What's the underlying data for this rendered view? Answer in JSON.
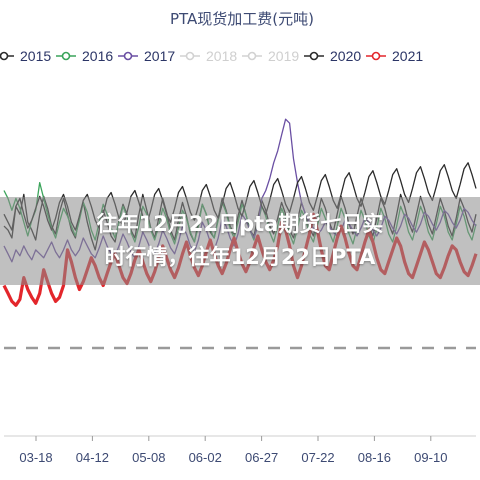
{
  "chart_data": {
    "type": "line",
    "title": "PTA现货加工费(元吨)",
    "xlabel": "",
    "ylabel": "",
    "legend_position": "top",
    "grid": false,
    "x_tick_labels": [
      "03-18",
      "04-12",
      "05-08",
      "06-02",
      "06-27",
      "07-22",
      "08-16",
      "09-10"
    ],
    "ylim": [
      0,
      1000
    ],
    "n_points": 120,
    "series": [
      {
        "name": "2015",
        "color": "#2b2b2b",
        "visible": true,
        "values": [
          530,
          520,
          500,
          580,
          560,
          610,
          540,
          520,
          495,
          560,
          605,
          575,
          530,
          510,
          565,
          600,
          560,
          520,
          500,
          555,
          590,
          540,
          500,
          470,
          520,
          570,
          540,
          505,
          490,
          545,
          585,
          560,
          520,
          500,
          560,
          610,
          570,
          525,
          500,
          550,
          600,
          565,
          520,
          495,
          545,
          590,
          555,
          510,
          490,
          540,
          585,
          560,
          515,
          500,
          550,
          600,
          570,
          530,
          510,
          555,
          595,
          560,
          520,
          505,
          550,
          595,
          570,
          530,
          510,
          550,
          590,
          560,
          520,
          500,
          545,
          590,
          560,
          525,
          505,
          550,
          600,
          575,
          540,
          515,
          560,
          605,
          575,
          535,
          510,
          555,
          600,
          570,
          530,
          505,
          550,
          600,
          575,
          535,
          510,
          560,
          610,
          580,
          540,
          515,
          560,
          605,
          575,
          535,
          510,
          555,
          600,
          570,
          530,
          505,
          550,
          600,
          575,
          540,
          515,
          560
        ]
      },
      {
        "name": "2016",
        "color": "#3aa45a",
        "visible": true,
        "values": [
          620,
          600,
          570,
          600,
          575,
          540,
          505,
          545,
          570,
          640,
          600,
          560,
          525,
          500,
          540,
          575,
          555,
          530,
          505,
          545,
          590,
          565,
          520,
          495,
          540,
          585,
          560,
          525,
          500,
          540,
          580,
          555,
          515,
          490,
          530,
          580,
          560,
          520,
          495,
          530,
          575,
          550,
          510,
          485,
          525,
          570,
          550,
          515,
          490,
          530,
          585,
          560,
          520,
          500,
          545,
          590,
          565,
          525,
          500,
          540,
          585,
          560,
          520,
          495,
          535,
          580,
          555,
          515,
          490,
          530,
          575,
          550,
          510,
          485,
          525,
          570,
          550,
          510,
          490,
          530,
          575,
          550,
          515,
          490,
          530,
          575,
          550,
          510,
          485,
          525,
          570,
          545,
          505,
          485,
          525,
          575,
          550,
          510,
          490,
          530,
          580,
          555,
          515,
          495,
          535,
          580,
          555,
          515,
          495,
          535,
          580,
          555,
          515,
          495,
          535,
          580,
          555,
          515,
          495,
          535
        ]
      },
      {
        "name": "2017",
        "color": "#6a4fa3",
        "visible": true,
        "values": [
          480,
          460,
          440,
          470,
          455,
          480,
          460,
          445,
          470,
          460,
          450,
          470,
          490,
          465,
          450,
          470,
          495,
          470,
          455,
          470,
          500,
          480,
          460,
          450,
          475,
          505,
          480,
          460,
          455,
          480,
          510,
          490,
          465,
          450,
          480,
          515,
          495,
          470,
          460,
          485,
          520,
          500,
          475,
          460,
          490,
          530,
          510,
          480,
          465,
          495,
          540,
          520,
          490,
          470,
          500,
          550,
          530,
          500,
          480,
          510,
          560,
          545,
          520,
          500,
          530,
          600,
          620,
          650,
          690,
          720,
          760,
          800,
          790,
          700,
          640,
          590,
          560,
          540,
          525,
          510,
          520,
          540,
          530,
          515,
          505,
          520,
          545,
          535,
          520,
          505,
          525,
          550,
          540,
          520,
          505,
          525,
          555,
          545,
          525,
          510,
          530,
          560,
          550,
          530,
          515,
          535,
          565,
          555,
          535,
          520,
          540,
          570,
          560,
          540,
          525,
          545,
          575,
          565,
          545,
          530
        ]
      },
      {
        "name": "2018",
        "color": "#d2d2d2",
        "visible": false,
        "values": []
      },
      {
        "name": "2019",
        "color": "#d2d2d2",
        "visible": false,
        "values": []
      },
      {
        "name": "2020",
        "color": "#2b2b2b",
        "visible": true,
        "values": [
          560,
          540,
          520,
          580,
          600,
          560,
          525,
          545,
          575,
          605,
          580,
          545,
          520,
          550,
          590,
          610,
          580,
          540,
          520,
          555,
          595,
          610,
          580,
          545,
          525,
          560,
          600,
          615,
          585,
          550,
          530,
          565,
          605,
          620,
          590,
          555,
          535,
          570,
          610,
          625,
          595,
          560,
          540,
          575,
          615,
          630,
          600,
          565,
          545,
          580,
          620,
          635,
          605,
          570,
          550,
          585,
          625,
          640,
          610,
          575,
          555,
          590,
          630,
          645,
          615,
          580,
          560,
          595,
          635,
          650,
          620,
          585,
          565,
          600,
          640,
          655,
          625,
          590,
          570,
          605,
          645,
          660,
          630,
          595,
          575,
          610,
          650,
          665,
          635,
          600,
          580,
          615,
          655,
          670,
          640,
          605,
          585,
          620,
          660,
          675,
          645,
          610,
          590,
          625,
          665,
          680,
          650,
          615,
          595,
          630,
          670,
          685,
          655,
          620,
          600,
          635,
          675,
          690,
          660,
          625
        ]
      },
      {
        "name": "2021",
        "color": "#e3262b",
        "visible": true,
        "values": [
          380,
          360,
          340,
          330,
          345,
          400,
          370,
          350,
          335,
          360,
          420,
          390,
          360,
          340,
          350,
          380,
          470,
          440,
          400,
          370,
          390,
          420,
          450,
          430,
          400,
          380,
          410,
          440,
          460,
          430,
          400,
          385,
          410,
          445,
          470,
          440,
          410,
          390,
          415,
          450,
          480,
          450,
          420,
          400,
          425,
          460,
          490,
          455,
          425,
          405,
          430,
          465,
          495,
          460,
          430,
          410,
          435,
          470,
          500,
          465,
          435,
          415,
          440,
          475,
          505,
          470,
          440,
          420,
          445,
          480,
          540,
          520,
          480,
          430,
          400,
          430,
          470,
          510,
          560,
          520,
          470,
          430,
          420,
          460,
          500,
          530,
          500,
          460,
          430,
          420,
          455,
          490,
          520,
          490,
          450,
          420,
          410,
          440,
          470,
          500,
          480,
          440,
          410,
          400,
          430,
          460,
          490,
          470,
          440,
          410,
          400,
          425,
          455,
          480,
          470,
          440,
          415,
          405,
          430,
          460
        ]
      }
    ]
  },
  "banner": {
    "line1": "往年12月22日pta期货七日实",
    "line2": "时行情，往年12月22日PTA"
  }
}
